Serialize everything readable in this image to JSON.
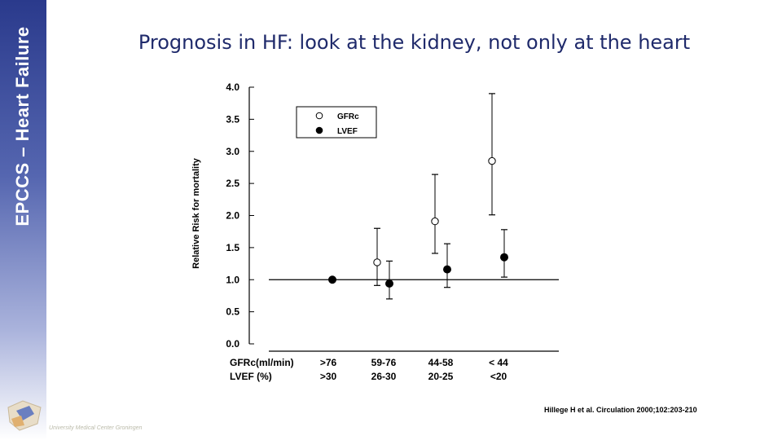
{
  "sidebar": {
    "label": "EPCCS – Heart Failure"
  },
  "slide": {
    "title": "Prognosis in HF: look at the kidney, not only at the heart",
    "citation": "Hillege H et al. Circulation 2000;102:203-210",
    "institution": "University Medical Center Groningen"
  },
  "chart_data": {
    "type": "scatter",
    "ylabel": "Relative Risk for mortality",
    "ylim": [
      0,
      4
    ],
    "yticks": [
      "0.0",
      "0.5",
      "1.0",
      "1.5",
      "2.0",
      "2.5",
      "3.0",
      "3.5",
      "4.0"
    ],
    "reference_line": 1.0,
    "legend": {
      "placement": "top-left",
      "items": [
        "GFRc",
        "LVEF"
      ]
    },
    "x_rows": [
      {
        "label": "GFRc(ml/min)",
        "ticks": [
          ">76",
          "59-76",
          "44-58",
          "< 44"
        ]
      },
      {
        "label": "LVEF (%)",
        "ticks": [
          ">30",
          "26-30",
          "20-25",
          "<20"
        ]
      }
    ],
    "series": [
      {
        "name": "GFRc",
        "marker": "open-circle",
        "points": [
          null,
          {
            "y": 1.27,
            "low": 0.91,
            "high": 1.8
          },
          {
            "y": 1.91,
            "low": 1.41,
            "high": 2.64
          },
          {
            "y": 2.85,
            "low": 2.01,
            "high": 3.9
          }
        ]
      },
      {
        "name": "LVEF",
        "marker": "filled-circle",
        "points": [
          {
            "y": 1.0
          },
          {
            "y": 0.94,
            "low": 0.7,
            "high": 1.29
          },
          {
            "y": 1.16,
            "low": 0.88,
            "high": 1.56
          },
          {
            "y": 1.35,
            "low": 1.04,
            "high": 1.78
          }
        ]
      }
    ]
  }
}
